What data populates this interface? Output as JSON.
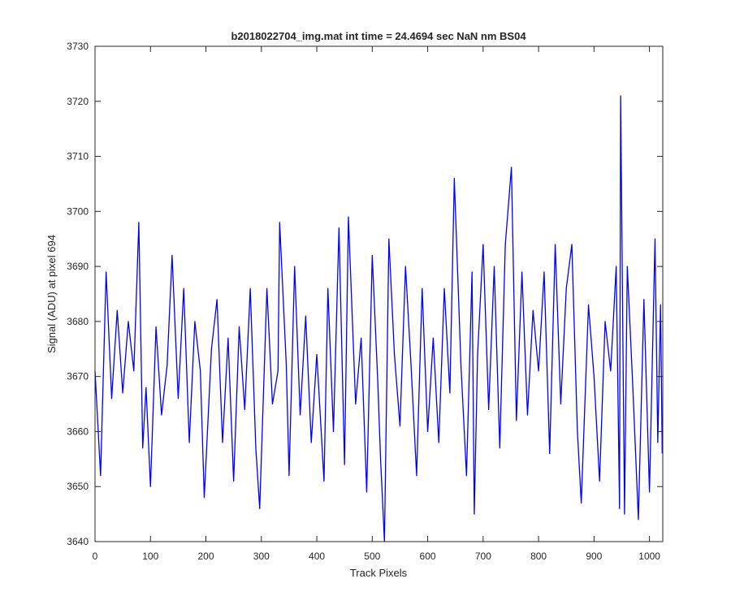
{
  "chart_data": {
    "type": "line",
    "title": "b2018022704_img.mat int time = 24.4694 sec  NaN nm BS04",
    "xlabel": "Track Pixels",
    "ylabel": "Signal (ADU) at pixel 694",
    "xlim": [
      0,
      1024
    ],
    "ylim": [
      3640,
      3730
    ],
    "xticks": [
      "0",
      "100",
      "200",
      "300",
      "400",
      "500",
      "600",
      "700",
      "800",
      "900",
      "1000"
    ],
    "yticks": [
      "3640",
      "3650",
      "3660",
      "3670",
      "3680",
      "3690",
      "3700",
      "3710",
      "3720",
      "3730"
    ],
    "grid": false,
    "line_color": "#0000ff",
    "series": [
      {
        "x": [
          0,
          10,
          20,
          30,
          40,
          50,
          60,
          70,
          79,
          86,
          92,
          100,
          110,
          120,
          130,
          139,
          150,
          160,
          170,
          180,
          190,
          197,
          210,
          220,
          230,
          240,
          250,
          260,
          270,
          280,
          290,
          297,
          310,
          320,
          330,
          333,
          345,
          350,
          360,
          370,
          380,
          390,
          400,
          413,
          420,
          430,
          440,
          450,
          457,
          470,
          480,
          490,
          500,
          510,
          515,
          522,
          530,
          540,
          550,
          560,
          570,
          580,
          590,
          600,
          610,
          620,
          630,
          640,
          648,
          660,
          670,
          680,
          684,
          690,
          700,
          710,
          720,
          730,
          740,
          751,
          760,
          770,
          780,
          790,
          800,
          810,
          820,
          830,
          840,
          850,
          860,
          870,
          877,
          890,
          900,
          910,
          920,
          930,
          940,
          946,
          948,
          955,
          960,
          970,
          980,
          990,
          1000,
          1010,
          1015,
          1020,
          1023
        ],
        "y": [
          3671,
          3652,
          3689,
          3666,
          3682,
          3667,
          3680,
          3671,
          3698,
          3657,
          3668,
          3650,
          3679,
          3663,
          3672,
          3692,
          3666,
          3686,
          3658,
          3680,
          3671,
          3648,
          3675,
          3684,
          3658,
          3677,
          3651,
          3679,
          3664,
          3686,
          3657,
          3646,
          3686,
          3665,
          3671,
          3698,
          3672,
          3652,
          3690,
          3663,
          3681,
          3658,
          3674,
          3651,
          3686,
          3660,
          3697,
          3654,
          3699,
          3665,
          3677,
          3649,
          3692,
          3669,
          3655,
          3640,
          3695,
          3674,
          3661,
          3690,
          3672,
          3652,
          3686,
          3660,
          3677,
          3658,
          3686,
          3667,
          3706,
          3672,
          3652,
          3689,
          3645,
          3674,
          3694,
          3664,
          3690,
          3657,
          3694,
          3708,
          3662,
          3689,
          3663,
          3682,
          3671,
          3689,
          3656,
          3694,
          3665,
          3686,
          3694,
          3660,
          3647,
          3683,
          3670,
          3651,
          3680,
          3671,
          3690,
          3646,
          3721,
          3645,
          3690,
          3668,
          3644,
          3684,
          3649,
          3695,
          3658,
          3683,
          3656
        ]
      }
    ]
  }
}
